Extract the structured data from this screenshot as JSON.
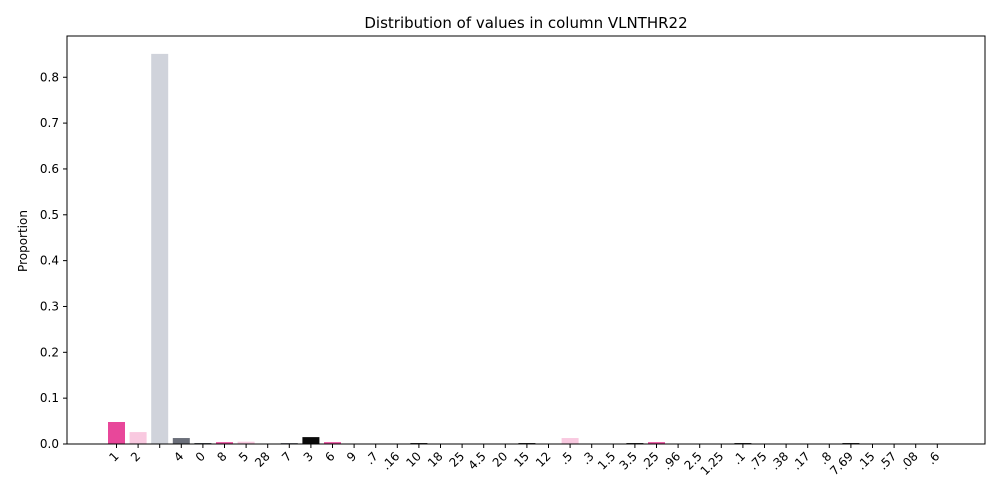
{
  "chart_data": {
    "type": "bar",
    "title": "Distribution of values in column VLNTHR22",
    "xlabel": "",
    "ylabel": "Proportion",
    "ylim": [
      0,
      0.89
    ],
    "yticks": [
      "0.0",
      "0.1",
      "0.2",
      "0.3",
      "0.4",
      "0.5",
      "0.6",
      "0.7",
      "0.8"
    ],
    "grid": false,
    "categories": [
      "1",
      "2",
      "",
      "4",
      "0",
      "8",
      "5",
      "28",
      "7",
      "3",
      "6",
      "9",
      ".7",
      ".16",
      "10",
      "18",
      "25",
      "4.5",
      "20",
      "15",
      "12",
      ".5",
      ".3",
      "1.5",
      "3.5",
      ".25",
      ".96",
      "2.5",
      "1.25",
      ".1",
      ".75",
      ".38",
      ".17",
      ".8",
      "7.69",
      ".15",
      ".57",
      ".08",
      ".6"
    ],
    "values": [
      0.048,
      0.026,
      0.851,
      0.013,
      0.002,
      0.004,
      0.005,
      0.001,
      0.002,
      0.015,
      0.004,
      0.001,
      0.001,
      0.001,
      0.002,
      0.001,
      0.001,
      0.0005,
      0.001,
      0.002,
      0.001,
      0.013,
      0.0005,
      0.001,
      0.002,
      0.004,
      0.0005,
      0.0005,
      0.001,
      0.002,
      0.001,
      0.0005,
      0.0005,
      0.001,
      0.002,
      0.001,
      0.0005,
      0.0005,
      0.001
    ],
    "colors": [
      "#e8479a",
      "#f9c9e0",
      "#d0d3db",
      "#6b6f7a",
      "#3a3d45",
      "#e8479a",
      "#f9c9e0",
      "#d0d3db",
      "#6b6f7a",
      "#0a0a0a",
      "#e8479a",
      "#f9c9e0",
      "#d0d3db",
      "#6b6f7a",
      "#0a0a0a",
      "#e8479a",
      "#f9c9e0",
      "#d0d3db",
      "#6b6f7a",
      "#0a0a0a",
      "#e8479a",
      "#f9c9e0",
      "#d0d3db",
      "#6b6f7a",
      "#0a0a0a",
      "#e8479a",
      "#f9c9e0",
      "#d0d3db",
      "#6b6f7a",
      "#0a0a0a",
      "#e8479a",
      "#f9c9e0",
      "#d0d3db",
      "#6b6f7a",
      "#0a0a0a",
      "#e8479a",
      "#f9c9e0",
      "#d0d3db",
      "#6b6f7a"
    ]
  }
}
